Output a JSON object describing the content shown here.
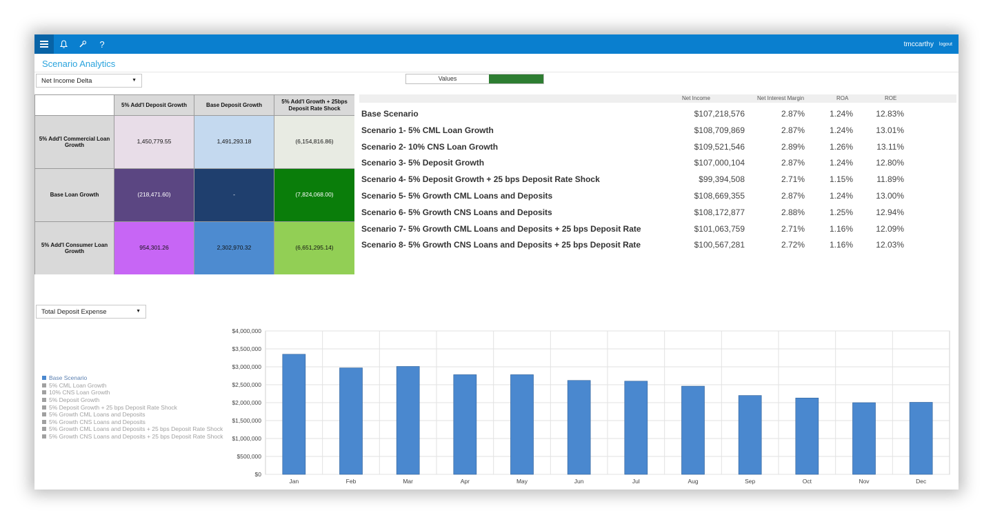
{
  "topbar": {
    "icons": [
      "menu-icon",
      "bell-icon",
      "wrench-icon",
      "help-icon"
    ],
    "user": "tmccarthy",
    "logout": "logout",
    "bar_color": "#0a7fcf"
  },
  "app": {
    "title": "Scenario Analytics"
  },
  "controls": {
    "matrix_metric": "Net Income Delta",
    "toggle_label": "Values",
    "chart_metric": "Total Deposit Expense"
  },
  "matrix": {
    "columns": [
      "5% Add'l Deposit Growth",
      "Base Deposit Growth",
      "5% Add'l Growth + 25bps Deposit Rate Shock"
    ],
    "rows": [
      {
        "label": "5% Add'l Commercial Loan Growth",
        "values": [
          "1,450,779.55",
          "1,491,293.18",
          "(6,154,816.86)"
        ],
        "colors": [
          "#e8dde8",
          "#c4d9ef",
          "#e8ebe3"
        ],
        "text": [
          "#111",
          "#111",
          "#111"
        ]
      },
      {
        "label": "Base Loan Growth",
        "values": [
          "(218,471.60)",
          "-",
          "(7,824,068.00)"
        ],
        "colors": [
          "#5b4682",
          "#1f3f6e",
          "#0a7d0a"
        ],
        "text": [
          "#fff",
          "#fff",
          "#fff"
        ]
      },
      {
        "label": "5% Add'l Consumer Loan Growth",
        "values": [
          "954,301.26",
          "2,302,970.32",
          "(6,651,295.14)"
        ],
        "colors": [
          "#c766f5",
          "#4d8bd0",
          "#92cf55"
        ],
        "text": [
          "#111",
          "#111",
          "#111"
        ]
      }
    ]
  },
  "scenarios": {
    "headers": [
      "Net Income",
      "Net Interest Margin",
      "ROA",
      "ROE"
    ],
    "rows": [
      {
        "name": "Base Scenario",
        "net_income": "$107,218,576",
        "nim": "2.87%",
        "roa": "1.24%",
        "roe": "12.83%"
      },
      {
        "name": "Scenario 1- 5% CML Loan Growth",
        "net_income": "$108,709,869",
        "nim": "2.87%",
        "roa": "1.24%",
        "roe": "13.01%"
      },
      {
        "name": "Scenario 2- 10% CNS Loan Growth",
        "net_income": "$109,521,546",
        "nim": "2.89%",
        "roa": "1.26%",
        "roe": "13.11%"
      },
      {
        "name": "Scenario 3- 5% Deposit Growth",
        "net_income": "$107,000,104",
        "nim": "2.87%",
        "roa": "1.24%",
        "roe": "12.80%"
      },
      {
        "name": "Scenario 4- 5% Deposit Growth + 25 bps Deposit Rate Shock",
        "net_income": "$99,394,508",
        "nim": "2.71%",
        "roa": "1.15%",
        "roe": "11.89%"
      },
      {
        "name": "Scenario 5- 5% Growth CML Loans and Deposits",
        "net_income": "$108,669,355",
        "nim": "2.87%",
        "roa": "1.24%",
        "roe": "13.00%"
      },
      {
        "name": "Scenario 6- 5% Growth CNS Loans and Deposits",
        "net_income": "$108,172,877",
        "nim": "2.88%",
        "roa": "1.25%",
        "roe": "12.94%"
      },
      {
        "name": "Scenario 7- 5% Growth CML Loans and Deposits + 25 bps Deposit Rate",
        "net_income": "$101,063,759",
        "nim": "2.71%",
        "roa": "1.16%",
        "roe": "12.09%"
      },
      {
        "name": "Scenario 8- 5% Growth CNS Loans and Deposits + 25 bps Deposit Rate",
        "net_income": "$100,567,281",
        "nim": "2.72%",
        "roa": "1.16%",
        "roe": "12.03%"
      }
    ]
  },
  "legend": [
    "Base Scenario",
    "5% CML Loan Growth",
    "10% CNS Loan Growth",
    "5% Deposit Growth",
    "5% Deposit Growth + 25 bps Deposit Rate Shock",
    "5% Growth CML Loans and Deposits",
    "5% Growth CNS Loans and Deposits",
    "5% Growth CML Loans and Deposits + 25 bps Deposit Rate Shock",
    "5% Growth CNS Loans and Deposits + 25 bps Deposit Rate Shock"
  ],
  "chart_data": {
    "type": "bar",
    "categories": [
      "Jan",
      "Feb",
      "Mar",
      "Apr",
      "May",
      "Jun",
      "Jul",
      "Aug",
      "Sep",
      "Oct",
      "Nov",
      "Dec"
    ],
    "series": [
      {
        "name": "Base Scenario",
        "values": [
          3350000,
          2970000,
          3010000,
          2780000,
          2780000,
          2620000,
          2600000,
          2460000,
          2200000,
          2130000,
          2000000,
          2010000
        ]
      }
    ],
    "yticks": [
      "$0",
      "$500,000",
      "$1,000,000",
      "$1,500,000",
      "$2,000,000",
      "$2,500,000",
      "$3,000,000",
      "$3,500,000",
      "$4,000,000"
    ],
    "ylim": [
      0,
      4000000
    ],
    "grid": true,
    "bar_color": "#4a88cf",
    "legend_position": "left"
  }
}
